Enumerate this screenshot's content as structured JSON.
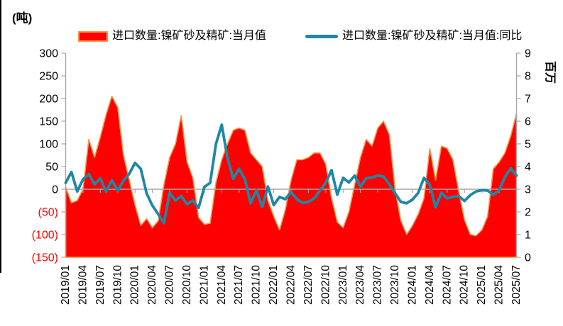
{
  "title_unit": "(吨)",
  "legend": {
    "area_label": "进口数量:镍矿砂及精矿:当月值",
    "line_label": "进口数量:镍矿砂及精矿:当月值:同比"
  },
  "colors": {
    "area_fill": "#FE0000",
    "area_outline": "#F79646",
    "line": "#1F87A5",
    "axis_gray": "#A6A6A6",
    "text": "#000000",
    "negative_tick": "#FF0000"
  },
  "chart_data": {
    "type": "area+line combo",
    "title": "",
    "xlabel": "",
    "left_axis": {
      "min": -150,
      "max": 300,
      "step": 50,
      "tick_labels": [
        "300",
        "250",
        "200",
        "150",
        "100",
        "50",
        "0",
        "(50)",
        "(100)",
        "(150)"
      ],
      "negative_in_red_parentheses": true,
      "unit_note": "(吨)"
    },
    "right_axis": {
      "min": 0,
      "max": 9,
      "step": 1,
      "tick_labels": [
        "9",
        "8",
        "7",
        "6",
        "5",
        "4",
        "3",
        "2",
        "1",
        "0"
      ],
      "unit": "百万"
    },
    "grid": false,
    "legend_position": "top",
    "x": [
      "2019/01",
      "2019/02",
      "2019/03",
      "2019/04",
      "2019/05",
      "2019/06",
      "2019/07",
      "2019/08",
      "2019/09",
      "2019/10",
      "2019/11",
      "2019/12",
      "2020/01",
      "2020/02",
      "2020/03",
      "2020/04",
      "2020/05",
      "2020/06",
      "2020/07",
      "2020/08",
      "2020/09",
      "2020/10",
      "2020/11",
      "2020/12",
      "2021/01",
      "2021/02",
      "2021/03",
      "2021/04",
      "2021/05",
      "2021/06",
      "2021/07",
      "2021/08",
      "2021/09",
      "2021/10",
      "2021/11",
      "2021/12",
      "2022/01",
      "2022/02",
      "2022/03",
      "2022/04",
      "2022/05",
      "2022/06",
      "2022/07",
      "2022/08",
      "2022/09",
      "2022/10",
      "2022/11",
      "2022/12",
      "2023/01",
      "2023/02",
      "2023/03",
      "2023/04",
      "2023/05",
      "2023/06",
      "2023/07",
      "2023/08",
      "2023/09",
      "2023/10",
      "2023/11",
      "2023/12",
      "2024/01",
      "2024/02",
      "2024/03",
      "2024/04",
      "2024/05",
      "2024/06",
      "2024/07",
      "2024/08",
      "2024/09",
      "2024/10",
      "2024/11",
      "2024/12",
      "2025/01",
      "2025/02",
      "2025/03",
      "2025/04",
      "2025/05",
      "2025/06",
      "2025/07"
    ],
    "x_tick_every": 3,
    "x_tick_labels": [
      "2019/01",
      "2019/04",
      "2019/07",
      "2019/10",
      "2020/01",
      "2020/04",
      "2020/07",
      "2020/10",
      "2021/01",
      "2021/04",
      "2021/07",
      "2021/10",
      "2022/01",
      "2022/04",
      "2022/07",
      "2022/10",
      "2023/01",
      "2023/04",
      "2023/07",
      "2023/10",
      "2024/01",
      "2024/04",
      "2024/07",
      "2024/10",
      "2025/01",
      "2025/04",
      "2025/07"
    ],
    "series": [
      {
        "name": "进口数量:镍矿砂及精矿:当月值",
        "type": "area",
        "axis": "right",
        "unit": "百万吨",
        "values": [
          3.1,
          2.4,
          2.5,
          3.0,
          5.2,
          4.4,
          5.3,
          6.3,
          7.1,
          6.6,
          4.5,
          3.4,
          2.3,
          1.4,
          1.7,
          1.3,
          1.6,
          3.2,
          4.4,
          5.0,
          6.25,
          4.2,
          3.5,
          1.75,
          1.45,
          1.5,
          3.3,
          4.3,
          5.0,
          5.6,
          5.7,
          5.6,
          4.6,
          4.3,
          4.0,
          2.5,
          1.8,
          1.2,
          2.1,
          3.4,
          4.3,
          4.3,
          4.4,
          4.6,
          4.6,
          4.1,
          2.6,
          1.55,
          1.3,
          2.0,
          3.2,
          4.4,
          5.2,
          4.9,
          5.7,
          6.0,
          5.4,
          3.0,
          1.6,
          1.0,
          1.4,
          1.9,
          2.6,
          4.8,
          3.4,
          4.9,
          4.8,
          4.3,
          2.9,
          1.65,
          1.0,
          0.95,
          1.2,
          1.8,
          3.9,
          4.2,
          4.6,
          5.35,
          6.35
        ]
      },
      {
        "name": "进口数量:镍矿砂及精矿:当月值:同比",
        "type": "line",
        "axis": "left",
        "unit": "%",
        "values": [
          14,
          38,
          -5,
          22,
          33,
          11,
          24,
          -5,
          20,
          -3,
          19,
          34,
          58,
          45,
          -9,
          -36,
          -55,
          -75,
          -8,
          -25,
          -15,
          -33,
          -25,
          -41,
          5,
          14,
          100,
          142,
          69,
          23,
          45,
          22,
          -31,
          -2,
          -39,
          6,
          -35,
          -17,
          -22,
          -6,
          -22,
          -30,
          -28,
          -20,
          -3,
          14,
          42,
          -12,
          25,
          15,
          30,
          6,
          24,
          26,
          30,
          28,
          11,
          -9,
          -28,
          -31,
          -23,
          -8,
          25,
          10,
          -40,
          -8,
          -20,
          -17,
          -15,
          -26,
          -13,
          -5,
          -2,
          -3,
          -12,
          -2,
          27,
          46,
          30
        ]
      }
    ]
  }
}
